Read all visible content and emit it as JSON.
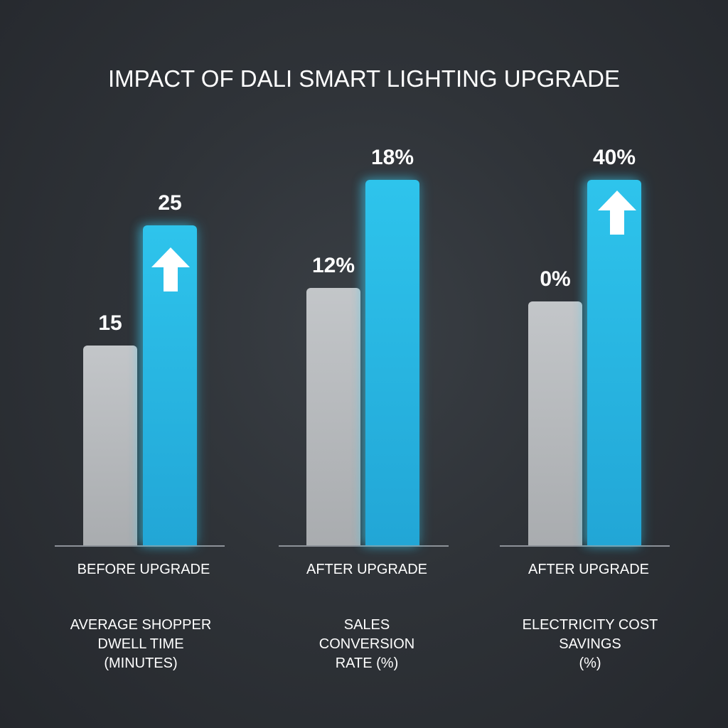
{
  "chart_data": {
    "type": "bar",
    "title": "IMPACT OF DALI SMART LIGHTING UPGRADE",
    "groups": [
      {
        "category_label": "BEFORE UPGRADE",
        "metric_lines": [
          "AVERAGE SHOPPER",
          "DWELL TIME",
          "(MINUTES)"
        ],
        "series": [
          {
            "name": "before",
            "value": 15,
            "label": "15",
            "color": "#b6b9bc"
          },
          {
            "name": "after",
            "value": 25,
            "label": "25",
            "color": "#27b6e2",
            "arrow_icon": "arrow-up-icon"
          }
        ]
      },
      {
        "category_label": "AFTER UPGRADE",
        "metric_lines": [
          "SALES",
          "CONVERSION",
          "RATE (%)"
        ],
        "series": [
          {
            "name": "before",
            "value": 12,
            "label": "12%",
            "color": "#b6b9bc"
          },
          {
            "name": "after",
            "value": 18,
            "label": "18%",
            "color": "#27b6e2"
          }
        ]
      },
      {
        "category_label": "AFTER UPGRADE",
        "metric_lines": [
          "ELECTRICITY COST",
          "SAVINGS",
          "(%)"
        ],
        "series": [
          {
            "name": "before",
            "value": 0,
            "label": "0%",
            "color": "#b6b9bc"
          },
          {
            "name": "after",
            "value": 40,
            "label": "40%",
            "color": "#27b6e2",
            "arrow_icon": "arrow-up-icon"
          }
        ]
      }
    ],
    "grid": false,
    "legend": "none"
  },
  "colors": {
    "background": "#2f3338",
    "before_bar": "#b6b9bc",
    "after_bar": "#27b6e2",
    "axis": "#8d9299",
    "text": "#ffffff"
  }
}
